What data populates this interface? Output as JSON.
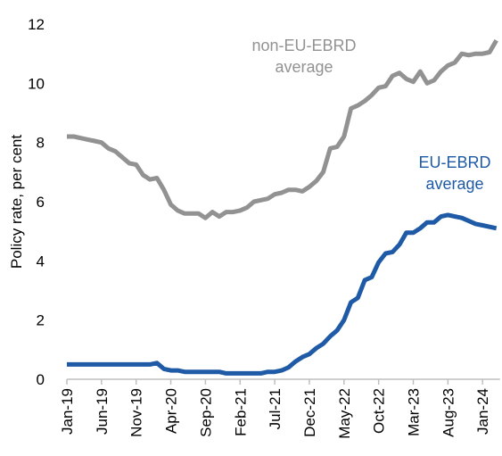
{
  "chart_data": {
    "type": "line",
    "y_label": "Policy rate, per cent",
    "categories": [
      "Jan-19",
      null,
      null,
      null,
      null,
      "Jun-19",
      null,
      null,
      null,
      null,
      "Nov-19",
      null,
      null,
      null,
      null,
      "Apr-20",
      null,
      null,
      null,
      null,
      "Sep-20",
      null,
      null,
      null,
      null,
      "Feb-21",
      null,
      null,
      null,
      null,
      "Jul-21",
      null,
      null,
      null,
      null,
      "Dec-21",
      null,
      null,
      null,
      null,
      "May-22",
      null,
      null,
      null,
      null,
      "Oct-22",
      null,
      null,
      null,
      null,
      "Mar-23",
      null,
      null,
      null,
      null,
      "Aug-23",
      null,
      null,
      null,
      null,
      "Jan-24",
      null,
      null
    ],
    "series": [
      {
        "name": "non-EU-EBRD average",
        "label_lines": [
          "non-EU-EBRD",
          "average"
        ],
        "color": "#929292",
        "values": [
          8.2,
          8.2,
          8.15,
          8.1,
          8.05,
          8.0,
          7.8,
          7.7,
          7.5,
          7.3,
          7.25,
          6.9,
          6.75,
          6.8,
          6.4,
          5.9,
          5.7,
          5.6,
          5.6,
          5.6,
          5.45,
          5.65,
          5.5,
          5.65,
          5.65,
          5.7,
          5.8,
          6.0,
          6.05,
          6.1,
          6.25,
          6.3,
          6.4,
          6.4,
          6.35,
          6.5,
          6.7,
          7.0,
          7.8,
          7.85,
          8.2,
          9.15,
          9.25,
          9.4,
          9.6,
          9.85,
          9.9,
          10.25,
          10.35,
          10.15,
          10.05,
          10.4,
          10.0,
          10.1,
          10.4,
          10.6,
          10.7,
          11.0,
          10.95,
          11.0,
          11.0,
          11.05,
          11.45
        ]
      },
      {
        "name": "EU-EBRD average",
        "label_lines": [
          "EU-EBRD",
          "average"
        ],
        "color": "#1f5aa6",
        "values": [
          0.5,
          0.5,
          0.5,
          0.5,
          0.5,
          0.5,
          0.5,
          0.5,
          0.5,
          0.5,
          0.5,
          0.5,
          0.5,
          0.55,
          0.35,
          0.3,
          0.3,
          0.25,
          0.25,
          0.25,
          0.25,
          0.25,
          0.25,
          0.2,
          0.2,
          0.2,
          0.2,
          0.2,
          0.2,
          0.25,
          0.25,
          0.3,
          0.4,
          0.6,
          0.75,
          0.85,
          1.05,
          1.2,
          1.45,
          1.65,
          2.0,
          2.6,
          2.75,
          3.35,
          3.45,
          3.95,
          4.25,
          4.3,
          4.55,
          4.95,
          4.95,
          5.1,
          5.3,
          5.3,
          5.5,
          5.55,
          5.5,
          5.45,
          5.35,
          5.25,
          5.2,
          5.15,
          5.1
        ]
      }
    ],
    "ylim": [
      0,
      12
    ],
    "yticks": [
      0,
      2,
      4,
      6,
      8,
      10,
      12
    ],
    "grid": false
  }
}
